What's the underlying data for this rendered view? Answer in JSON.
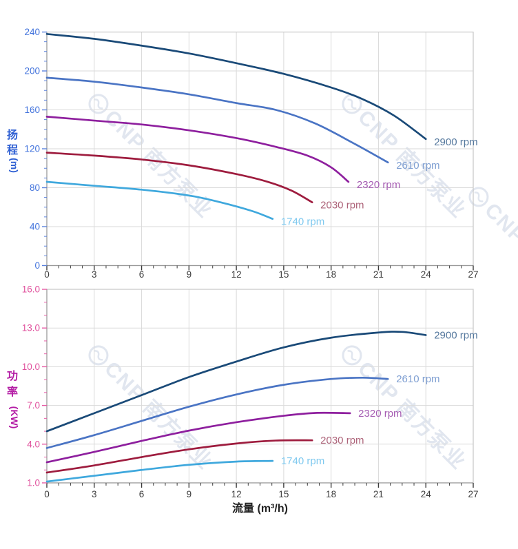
{
  "watermark": {
    "text": "CNP 南方泵业",
    "color": "#c9d3e3"
  },
  "colors": {
    "background": "#ffffff",
    "grid": "#dadada",
    "plot_border": "#c6c6c6",
    "axis_line": "#9a9a9a",
    "x_tick": "#3c3c3c",
    "x_tick_label": "#3c3c3c",
    "xlabel_color": "#222222"
  },
  "chart_data": [
    {
      "type": "line",
      "ylabel": "扬程",
      "ylabel_unit": "(m)",
      "xlabel": "",
      "xlim": [
        0,
        27
      ],
      "ylim": [
        0,
        240
      ],
      "xticks": [
        0,
        3,
        6,
        9,
        12,
        15,
        18,
        21,
        24,
        27
      ],
      "yticks": [
        0,
        40,
        80,
        120,
        160,
        200,
        240
      ],
      "x_minor_step": 0.75,
      "y_minor_step": 10,
      "ytick_decimals": 0,
      "grid": true,
      "axis_tick_color": "#5b82dd",
      "axis_label_color": "#4273dc",
      "axis_title_color": "#2e5fd3",
      "legend_position": "end-of-curve",
      "series": [
        {
          "name": "2900 rpm",
          "color": "#1a4a78",
          "label_color": "#56799e",
          "points": [
            [
              0,
              238
            ],
            [
              3,
              233
            ],
            [
              6,
              226
            ],
            [
              9,
              218
            ],
            [
              12,
              208
            ],
            [
              15,
              197
            ],
            [
              18,
              183
            ],
            [
              20,
              171
            ],
            [
              22,
              154
            ],
            [
              24,
              130
            ]
          ]
        },
        {
          "name": "2610 rpm",
          "color": "#4a74c4",
          "label_color": "#7f9fd2",
          "points": [
            [
              0,
              193
            ],
            [
              3,
              189
            ],
            [
              6,
              183
            ],
            [
              9,
              176
            ],
            [
              12,
              167
            ],
            [
              14.5,
              160
            ],
            [
              17,
              146
            ],
            [
              19.5,
              125
            ],
            [
              21.6,
              106
            ]
          ]
        },
        {
          "name": "2320 rpm",
          "color": "#8e1f9e",
          "label_color": "#a55cb2",
          "points": [
            [
              0,
              153
            ],
            [
              3,
              149
            ],
            [
              6,
              145
            ],
            [
              9,
              139
            ],
            [
              12,
              131
            ],
            [
              14.5,
              122
            ],
            [
              16.5,
              113
            ],
            [
              18,
              101
            ],
            [
              19.1,
              86
            ]
          ]
        },
        {
          "name": "2030 rpm",
          "color": "#9e1c3e",
          "label_color": "#ad6379",
          "points": [
            [
              0,
              116
            ],
            [
              3,
              113
            ],
            [
              6,
              109
            ],
            [
              9,
              103
            ],
            [
              12,
              94
            ],
            [
              14,
              86
            ],
            [
              15.5,
              77
            ],
            [
              16.8,
              65
            ]
          ]
        },
        {
          "name": "1740 rpm",
          "color": "#3fa8dd",
          "label_color": "#7fc9ef",
          "points": [
            [
              0,
              86
            ],
            [
              3,
              82
            ],
            [
              6,
              78
            ],
            [
              9,
              72
            ],
            [
              11,
              65
            ],
            [
              13,
              56
            ],
            [
              14.3,
              48
            ]
          ]
        }
      ]
    },
    {
      "type": "line",
      "ylabel": "功率",
      "ylabel_unit": "(KW)",
      "xlabel": "流量 (m³/h)",
      "xlim": [
        0,
        27
      ],
      "ylim": [
        1.0,
        16.0
      ],
      "xticks": [
        0,
        3,
        6,
        9,
        12,
        15,
        18,
        21,
        24,
        27
      ],
      "yticks": [
        1.0,
        4.0,
        7.0,
        10.0,
        13.0,
        16.0
      ],
      "x_minor_step": 0.75,
      "y_minor_step": 1.0,
      "ytick_decimals": 1,
      "grid": true,
      "axis_tick_color": "#e65aa4",
      "axis_label_color": "#e0519d",
      "axis_title_color": "#b31ba4",
      "legend_position": "end-of-curve",
      "series": [
        {
          "name": "2900 rpm",
          "color": "#1a4a78",
          "label_color": "#56799e",
          "points": [
            [
              0,
              5.0
            ],
            [
              3,
              6.4
            ],
            [
              6,
              7.8
            ],
            [
              9,
              9.2
            ],
            [
              12,
              10.4
            ],
            [
              15,
              11.5
            ],
            [
              18,
              12.25
            ],
            [
              21,
              12.65
            ],
            [
              22.5,
              12.7
            ],
            [
              24,
              12.45
            ]
          ]
        },
        {
          "name": "2610 rpm",
          "color": "#4a74c4",
          "label_color": "#7f9fd2",
          "points": [
            [
              0,
              3.7
            ],
            [
              3,
              4.7
            ],
            [
              6,
              5.8
            ],
            [
              9,
              6.9
            ],
            [
              12,
              7.85
            ],
            [
              15,
              8.6
            ],
            [
              18,
              9.05
            ],
            [
              20,
              9.15
            ],
            [
              21.6,
              9.05
            ]
          ]
        },
        {
          "name": "2320 rpm",
          "color": "#8e1f9e",
          "label_color": "#a55cb2",
          "points": [
            [
              0,
              2.6
            ],
            [
              3,
              3.4
            ],
            [
              6,
              4.25
            ],
            [
              9,
              5.05
            ],
            [
              12,
              5.7
            ],
            [
              15,
              6.2
            ],
            [
              17,
              6.42
            ],
            [
              19.2,
              6.4
            ]
          ]
        },
        {
          "name": "2030 rpm",
          "color": "#9e1c3e",
          "label_color": "#ad6379",
          "points": [
            [
              0,
              1.8
            ],
            [
              3,
              2.35
            ],
            [
              6,
              3.0
            ],
            [
              9,
              3.6
            ],
            [
              12,
              4.05
            ],
            [
              14.5,
              4.28
            ],
            [
              16.8,
              4.3
            ]
          ]
        },
        {
          "name": "1740 rpm",
          "color": "#3fa8dd",
          "label_color": "#7fc9ef",
          "points": [
            [
              0,
              1.1
            ],
            [
              3,
              1.55
            ],
            [
              6,
              2.0
            ],
            [
              9,
              2.4
            ],
            [
              12,
              2.65
            ],
            [
              14.3,
              2.7
            ]
          ]
        }
      ]
    }
  ]
}
